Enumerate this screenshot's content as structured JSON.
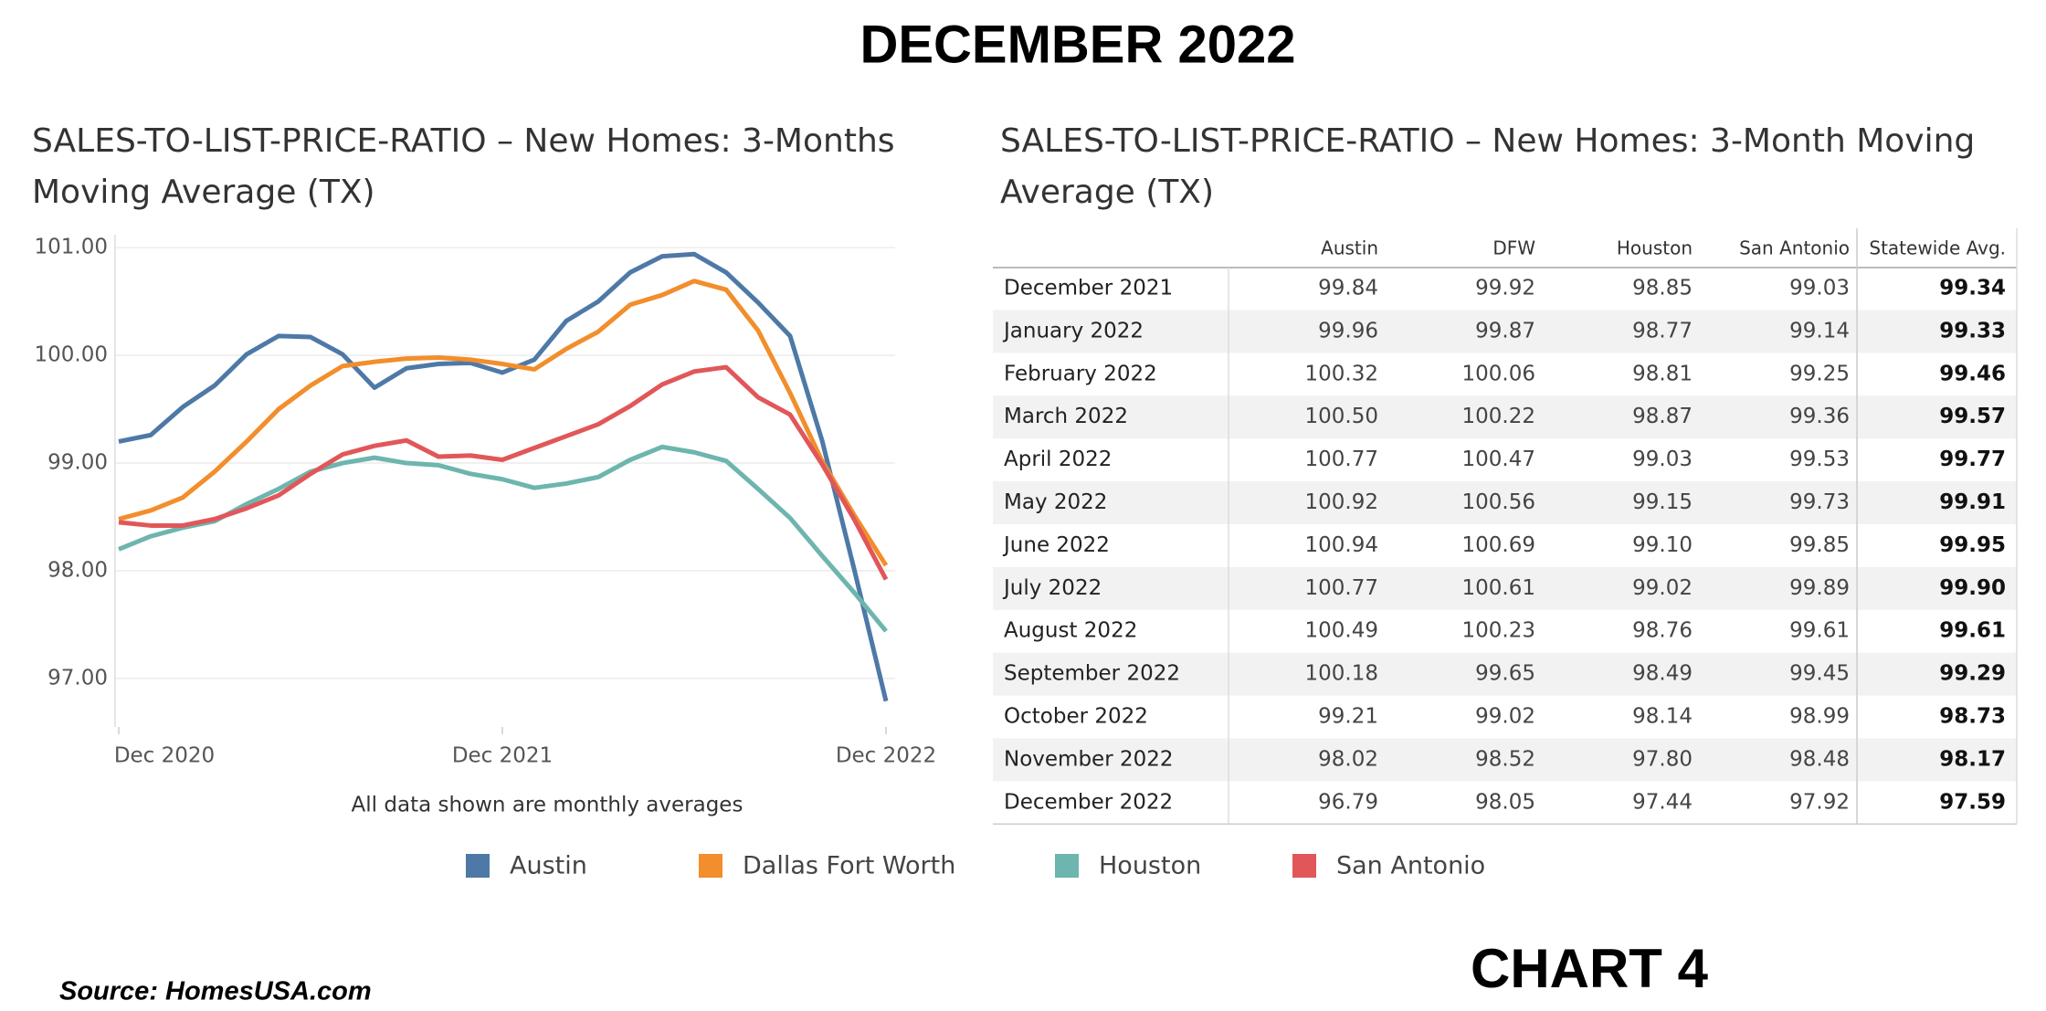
{
  "title": "DECEMBER 2022",
  "chart_data": {
    "type": "line",
    "title": "SALES-TO-LIST-PRICE-RATIO – New Homes: 3-Months Moving Average (TX)",
    "note": "All data shown are monthly averages",
    "x": [
      "2020-12",
      "2021-01",
      "2021-02",
      "2021-03",
      "2021-04",
      "2021-05",
      "2021-06",
      "2021-07",
      "2021-08",
      "2021-09",
      "2021-10",
      "2021-11",
      "2021-12",
      "2022-01",
      "2022-02",
      "2022-03",
      "2022-04",
      "2022-05",
      "2022-06",
      "2022-07",
      "2022-08",
      "2022-09",
      "2022-10",
      "2022-11",
      "2022-12"
    ],
    "xticks": [
      {
        "value": "2020-12",
        "label": "Dec 2020"
      },
      {
        "value": "2021-12",
        "label": "Dec 2021"
      },
      {
        "value": "2022-12",
        "label": "Dec 2022"
      }
    ],
    "ylim": [
      96.55,
      101.12
    ],
    "yticks": [
      {
        "value": 97,
        "label": "97.00"
      },
      {
        "value": 98,
        "label": "98.00"
      },
      {
        "value": 99,
        "label": "99.00"
      },
      {
        "value": 100,
        "label": "100.00"
      },
      {
        "value": 101,
        "label": "101.00"
      }
    ],
    "grid": true,
    "series": [
      {
        "name": "Austin",
        "color": "#4e79a7",
        "values": [
          99.2,
          99.26,
          99.52,
          99.72,
          100.01,
          100.18,
          100.17,
          100.01,
          99.7,
          99.88,
          99.92,
          99.93,
          99.84,
          99.96,
          100.32,
          100.5,
          100.77,
          100.92,
          100.94,
          100.77,
          100.49,
          100.18,
          99.21,
          98.02,
          96.79
        ]
      },
      {
        "name": "Dallas Fort Worth",
        "color": "#f28e2b",
        "values": [
          98.48,
          98.56,
          98.68,
          98.92,
          99.2,
          99.5,
          99.72,
          99.9,
          99.94,
          99.97,
          99.98,
          99.96,
          99.92,
          99.87,
          100.06,
          100.22,
          100.47,
          100.56,
          100.69,
          100.61,
          100.23,
          99.65,
          99.02,
          98.52,
          98.05
        ]
      },
      {
        "name": "Houston",
        "color": "#6db5ae",
        "values": [
          98.2,
          98.32,
          98.4,
          98.46,
          98.62,
          98.76,
          98.92,
          99.0,
          99.05,
          99.0,
          98.98,
          98.9,
          98.85,
          98.77,
          98.81,
          98.87,
          99.03,
          99.15,
          99.1,
          99.02,
          98.76,
          98.49,
          98.14,
          97.8,
          97.44
        ]
      },
      {
        "name": "San Antonio",
        "color": "#e15759",
        "values": [
          98.45,
          98.42,
          98.42,
          98.48,
          98.58,
          98.7,
          98.9,
          99.08,
          99.16,
          99.21,
          99.06,
          99.07,
          99.03,
          99.14,
          99.25,
          99.36,
          99.53,
          99.73,
          99.85,
          99.89,
          99.61,
          99.45,
          98.99,
          98.48,
          97.92
        ]
      }
    ]
  },
  "table": {
    "title": "SALES-TO-LIST-PRICE-RATIO – New Homes:  3-Month Moving Average (TX)",
    "columns": [
      "Austin",
      "DFW",
      "Houston",
      "San Antonio",
      "Statewide Avg."
    ],
    "rows": [
      [
        "December 2021",
        "99.84",
        "99.92",
        "98.85",
        "99.03",
        "99.34"
      ],
      [
        "January 2022",
        "99.96",
        "99.87",
        "98.77",
        "99.14",
        "99.33"
      ],
      [
        "February 2022",
        "100.32",
        "100.06",
        "98.81",
        "99.25",
        "99.46"
      ],
      [
        "March 2022",
        "100.50",
        "100.22",
        "98.87",
        "99.36",
        "99.57"
      ],
      [
        "April 2022",
        "100.77",
        "100.47",
        "99.03",
        "99.53",
        "99.77"
      ],
      [
        "May 2022",
        "100.92",
        "100.56",
        "99.15",
        "99.73",
        "99.91"
      ],
      [
        "June 2022",
        "100.94",
        "100.69",
        "99.10",
        "99.85",
        "99.95"
      ],
      [
        "July 2022",
        "100.77",
        "100.61",
        "99.02",
        "99.89",
        "99.90"
      ],
      [
        "August 2022",
        "100.49",
        "100.23",
        "98.76",
        "99.61",
        "99.61"
      ],
      [
        "September 2022",
        "100.18",
        "99.65",
        "98.49",
        "99.45",
        "99.29"
      ],
      [
        "October 2022",
        "99.21",
        "99.02",
        "98.14",
        "98.99",
        "98.73"
      ],
      [
        "November 2022",
        "98.02",
        "98.52",
        "97.80",
        "98.48",
        "98.17"
      ],
      [
        "December 2022",
        "96.79",
        "98.05",
        "97.44",
        "97.92",
        "97.59"
      ]
    ]
  },
  "footer": {
    "source": "Source: HomesUSA.com",
    "label": "CHART 4"
  }
}
